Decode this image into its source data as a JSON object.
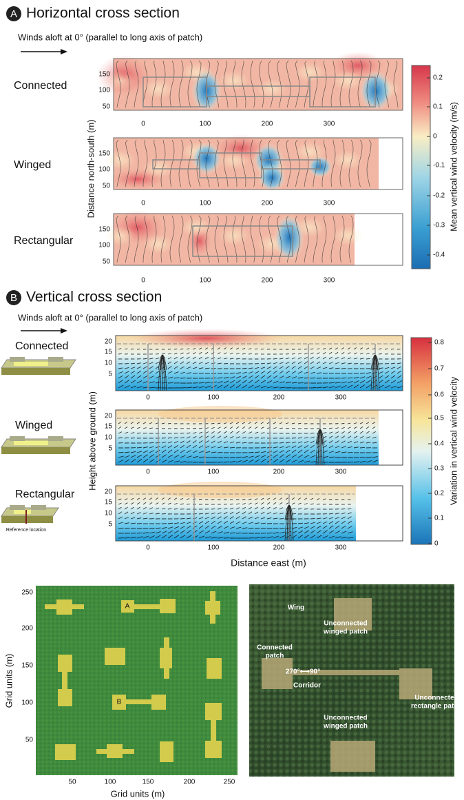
{
  "panel_a": {
    "letter": "A",
    "title": "Horizontal cross section",
    "wind_note": "Winds aloft at 0° (parallel to long axis of patch)",
    "rows": [
      "Connected",
      "Winged",
      "Rectangular"
    ],
    "x_ticks": [
      "0",
      "100",
      "200",
      "300"
    ],
    "y_ticks": [
      "150",
      "100",
      "50"
    ],
    "y_label": "Distance north-south (m)",
    "colorbar": {
      "label": "Mean vertical wind velocity (m/s)",
      "ticks": [
        "0.2",
        "0.1",
        "0",
        "-0.1",
        "-0.2",
        "-0.3",
        "-0.4"
      ]
    }
  },
  "panel_b": {
    "letter": "B",
    "title": "Vertical cross section",
    "wind_note": "Winds aloft at 0° (parallel to long axis of patch)",
    "rows": [
      "Connected",
      "Winged",
      "Rectangular"
    ],
    "reference": "Reference location",
    "x_ticks": [
      "0",
      "100",
      "200",
      "300"
    ],
    "y_ticks": [
      "20",
      "15",
      "10",
      "5"
    ],
    "x_label": "Distance east (m)",
    "y_label": "Height above ground (m)",
    "colorbar": {
      "label": "Variation in vertical wind velocity",
      "ticks": [
        "0.8",
        "0.7",
        "0.6",
        "0.5",
        "0.4",
        "0.3",
        "0.2",
        "0.1",
        "0"
      ]
    }
  },
  "grid_map": {
    "patch_labels": [
      "A",
      "B"
    ],
    "x_label": "Grid units (m)",
    "y_label": "Grid units (m)",
    "x_ticks": [
      "50",
      "100",
      "150",
      "200",
      "250"
    ],
    "y_ticks": [
      "250",
      "200",
      "150",
      "100",
      "50"
    ]
  },
  "aerial_photo": {
    "labels": [
      [
        "Wing"
      ],
      [
        "Unconnected",
        "winged patch"
      ],
      [
        "Connected",
        "patch"
      ],
      [
        "270°⟷90°"
      ],
      [
        "Corridor"
      ],
      [
        "Unconnected",
        "rectangle patch"
      ],
      [
        "Unconnected",
        "winged patch"
      ]
    ]
  }
}
